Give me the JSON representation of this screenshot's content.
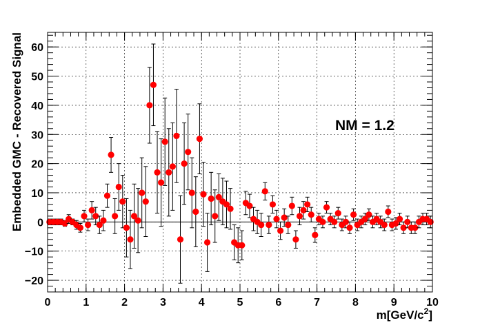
{
  "chart_data": {
    "type": "scatter",
    "xlabel": "m[GeV/c",
    "xlabel_sup": "2",
    "xlabel_end": "]",
    "ylabel": "Embedded GMC - Recovered Signal",
    "annotation": "NM = 1.2",
    "xlim": [
      0,
      10
    ],
    "ylim": [
      -24,
      65
    ],
    "x_ticks": [
      0,
      1,
      2,
      3,
      4,
      5,
      6,
      7,
      8,
      9,
      10
    ],
    "x_tick_labels": [
      "0",
      "1",
      "2",
      "3",
      "4",
      "5",
      "6",
      "7",
      "8",
      "9",
      "10"
    ],
    "y_ticks": [
      -20,
      -10,
      0,
      10,
      20,
      30,
      40,
      50,
      60
    ],
    "y_tick_labels": [
      "−20",
      "−10",
      "0",
      "10",
      "20",
      "30",
      "40",
      "50",
      "60"
    ],
    "grid": true,
    "marker_color": "#ff0000",
    "x": [
      0.05,
      0.15,
      0.25,
      0.35,
      0.45,
      0.55,
      0.65,
      0.75,
      0.85,
      0.95,
      1.05,
      1.15,
      1.25,
      1.35,
      1.45,
      1.55,
      1.65,
      1.75,
      1.85,
      1.95,
      2.05,
      2.15,
      2.25,
      2.35,
      2.45,
      2.55,
      2.65,
      2.75,
      2.85,
      2.95,
      3.05,
      3.15,
      3.25,
      3.35,
      3.45,
      3.55,
      3.65,
      3.75,
      3.85,
      3.95,
      4.05,
      4.15,
      4.25,
      4.35,
      4.45,
      4.55,
      4.65,
      4.75,
      4.85,
      4.95,
      5.05,
      5.15,
      5.25,
      5.35,
      5.45,
      5.55,
      5.65,
      5.75,
      5.85,
      5.95,
      6.05,
      6.15,
      6.25,
      6.35,
      6.45,
      6.55,
      6.65,
      6.75,
      6.85,
      6.95,
      7.05,
      7.15,
      7.25,
      7.35,
      7.45,
      7.55,
      7.65,
      7.75,
      7.85,
      7.95,
      8.05,
      8.15,
      8.25,
      8.35,
      8.45,
      8.55,
      8.65,
      8.75,
      8.85,
      8.95,
      9.05,
      9.15,
      9.25,
      9.35,
      9.45,
      9.55,
      9.65,
      9.75,
      9.85,
      9.95
    ],
    "y": [
      0,
      0,
      0,
      0,
      -0.5,
      1,
      0,
      -1,
      -2,
      2,
      -1,
      4,
      2,
      -1,
      0.5,
      9,
      23,
      2,
      12,
      7,
      -2,
      -6,
      2,
      0.5,
      10,
      7,
      40,
      47,
      17,
      13.5,
      27.5,
      17,
      19,
      29.5,
      -6,
      20,
      24,
      10,
      3.5,
      28.5,
      9.5,
      -7,
      8,
      2,
      8.5,
      7,
      6,
      4.5,
      -7,
      -8,
      -8,
      6.5,
      5.5,
      1,
      0,
      -1,
      10.5,
      -1,
      6,
      1,
      -3,
      1.5,
      -1,
      5.5,
      -6,
      2,
      4,
      6,
      2.5,
      -4.5,
      1,
      0,
      5,
      1,
      0,
      3,
      -1,
      0,
      -2,
      2.5,
      -1,
      0,
      1,
      2.5,
      0,
      1,
      0,
      -1,
      3.5,
      -1,
      -0.5,
      1,
      -2,
      0,
      -2,
      -2,
      0,
      1,
      1,
      0
    ],
    "err": [
      1,
      1,
      1,
      1,
      1,
      1.5,
      1,
      1.5,
      1.5,
      2,
      2,
      3,
      3,
      3,
      3.5,
      4,
      6,
      6,
      8,
      9,
      10,
      10,
      11,
      11,
      12,
      12,
      13,
      14,
      14,
      15,
      15,
      15,
      15,
      16,
      15,
      14,
      13,
      12,
      12,
      12,
      11,
      10,
      9,
      9,
      8,
      8,
      8,
      7,
      6,
      6,
      5,
      4,
      4,
      4,
      4,
      4,
      3,
      3,
      3,
      3,
      3,
      3,
      3,
      3,
      3,
      3,
      3,
      2.5,
      2.5,
      2.5,
      2,
      2,
      2,
      2,
      2,
      2,
      2,
      2,
      2,
      2,
      2,
      2,
      2,
      2,
      2,
      2,
      2,
      2,
      2,
      2,
      2,
      2,
      2,
      2,
      2,
      2,
      2,
      2,
      2,
      2
    ]
  }
}
